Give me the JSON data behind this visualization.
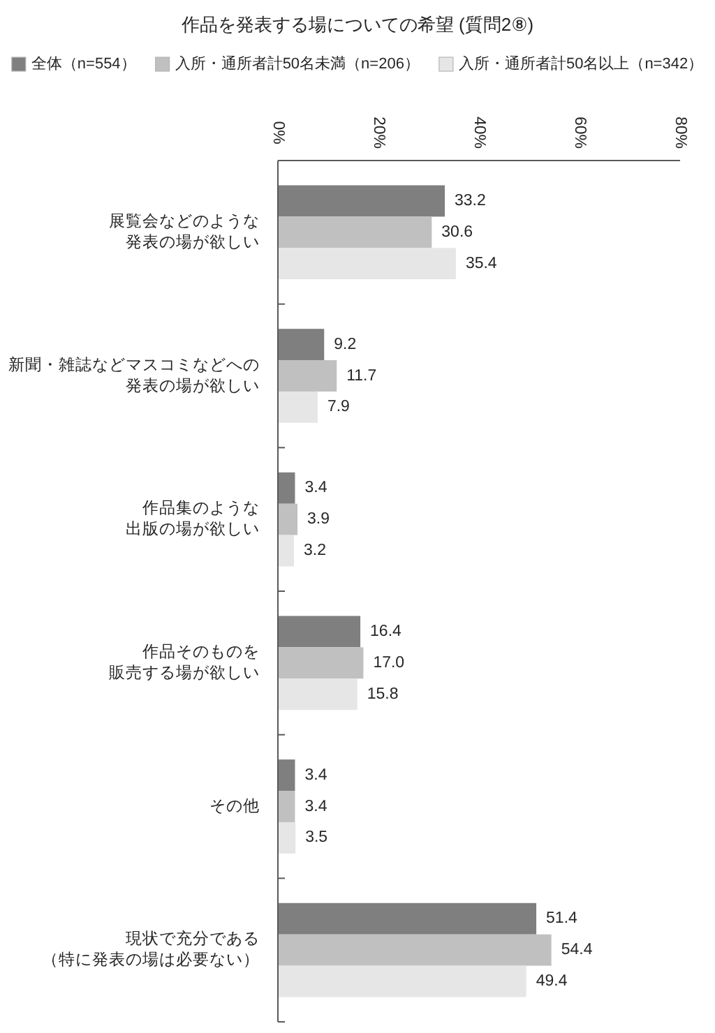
{
  "chart_data": {
    "type": "bar",
    "orientation": "horizontal",
    "title": "作品を発表する場についての希望 (質問2⑧)",
    "categories": [
      "展覧会などのような発表の場が欲しい",
      "新聞・雑誌などマスコミなどへの発表の場が欲しい",
      "作品集のような出版の場が欲しい",
      "作品そのものを販売する場が欲しい",
      "その他",
      "現状で充分である（特に発表の場は必要ない）"
    ],
    "series": [
      {
        "name": "全体（n=554）",
        "color": "#7f7f7f",
        "values": [
          33.2,
          9.2,
          3.4,
          16.4,
          3.4,
          51.4
        ],
        "value_labels": [
          "33.2",
          "9.2",
          "3.4",
          "16.4",
          "3.4",
          "51.4"
        ]
      },
      {
        "name": "入所・通所者計50名未満（n=206）",
        "color": "#c0c0c0",
        "values": [
          30.6,
          11.7,
          3.9,
          17.0,
          3.4,
          54.4
        ],
        "value_labels": [
          "30.6",
          "11.7",
          "3.9",
          "17.0",
          "3.4",
          "54.4"
        ]
      },
      {
        "name": "入所・通所者計50名以上（n=342）",
        "color": "#e6e6e6",
        "values": [
          35.4,
          7.9,
          3.2,
          15.8,
          3.5,
          49.4
        ],
        "value_labels": [
          "35.4",
          "7.9",
          "3.2",
          "15.8",
          "3.5",
          "49.4"
        ]
      }
    ],
    "xlim": [
      0,
      80
    ],
    "xticks": [
      {
        "value": 0,
        "label": "0%"
      },
      {
        "value": 20,
        "label": "20%"
      },
      {
        "value": 40,
        "label": "40%"
      },
      {
        "value": 60,
        "label": "60%"
      },
      {
        "value": 80,
        "label": "80%"
      }
    ],
    "legend": "top"
  }
}
